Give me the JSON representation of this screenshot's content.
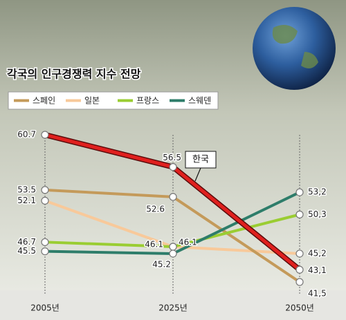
{
  "chart_data": {
    "type": "line",
    "title": "각국의 인구경쟁력 지수 전망",
    "categories": [
      "2005년",
      "2025년",
      "2050년"
    ],
    "series": [
      {
        "name": "스페인",
        "color": "#c49a5a",
        "values": [
          53.5,
          52.6,
          41.5
        ],
        "value_labels": [
          "53.5",
          "52.6",
          "41,5"
        ]
      },
      {
        "name": "일본",
        "color": "#f8c99a",
        "values": [
          52.1,
          46.1,
          45.2
        ],
        "value_labels": [
          "52.1",
          "46.1",
          "45,2"
        ]
      },
      {
        "name": "프랑스",
        "color": "#9acd32",
        "values": [
          46.7,
          46.1,
          50.3
        ],
        "value_labels": [
          "46.7",
          "46.1",
          "50,3"
        ]
      },
      {
        "name": "스웨덴",
        "color": "#2e7d6a",
        "values": [
          45.5,
          45.2,
          53.2
        ],
        "value_labels": [
          "45.5",
          "45.2",
          "53,2"
        ]
      },
      {
        "name": "한국",
        "color": "#e0201e",
        "values": [
          60.7,
          56.5,
          43.1
        ],
        "value_labels": [
          "60.7",
          "56.5",
          "43,1"
        ]
      }
    ]
  }
}
